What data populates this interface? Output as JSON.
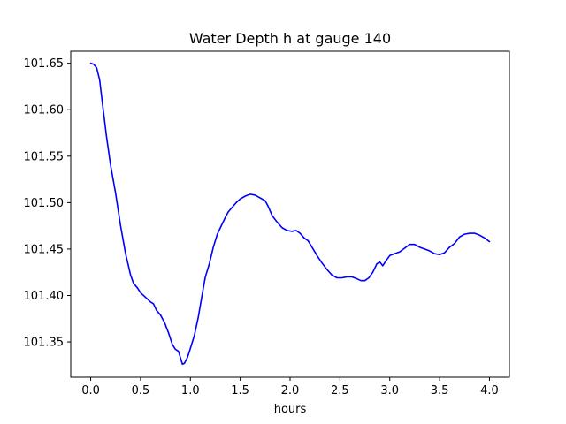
{
  "chart_data": {
    "type": "line",
    "title": "Water Depth h at gauge 140",
    "xlabel": "hours",
    "ylabel": "",
    "xlim": [
      -0.2,
      4.2
    ],
    "ylim": [
      101.312,
      101.663
    ],
    "x_ticks": [
      0.0,
      0.5,
      1.0,
      1.5,
      2.0,
      2.5,
      3.0,
      3.5,
      4.0
    ],
    "x_tick_labels": [
      "0.0",
      "0.5",
      "1.0",
      "1.5",
      "2.0",
      "2.5",
      "3.0",
      "3.5",
      "4.0"
    ],
    "y_ticks": [
      101.35,
      101.4,
      101.45,
      101.5,
      101.55,
      101.6,
      101.65
    ],
    "y_tick_labels": [
      "101.35",
      "101.40",
      "101.45",
      "101.50",
      "101.55",
      "101.60",
      "101.65"
    ],
    "grid": false,
    "series": [
      {
        "color": "#0000ff",
        "points": [
          [
            0.0,
            101.65
          ],
          [
            0.03,
            101.649
          ],
          [
            0.06,
            101.645
          ],
          [
            0.09,
            101.632
          ],
          [
            0.12,
            101.605
          ],
          [
            0.16,
            101.57
          ],
          [
            0.2,
            101.54
          ],
          [
            0.25,
            101.51
          ],
          [
            0.3,
            101.475
          ],
          [
            0.35,
            101.445
          ],
          [
            0.4,
            101.422
          ],
          [
            0.43,
            101.413
          ],
          [
            0.47,
            101.408
          ],
          [
            0.5,
            101.403
          ],
          [
            0.55,
            101.398
          ],
          [
            0.6,
            101.393
          ],
          [
            0.63,
            101.391
          ],
          [
            0.66,
            101.384
          ],
          [
            0.7,
            101.379
          ],
          [
            0.74,
            101.371
          ],
          [
            0.78,
            101.36
          ],
          [
            0.82,
            101.347
          ],
          [
            0.85,
            101.342
          ],
          [
            0.88,
            101.34
          ],
          [
            0.9,
            101.333
          ],
          [
            0.92,
            101.326
          ],
          [
            0.94,
            101.327
          ],
          [
            0.97,
            101.333
          ],
          [
            1.0,
            101.343
          ],
          [
            1.04,
            101.357
          ],
          [
            1.08,
            101.377
          ],
          [
            1.12,
            101.402
          ],
          [
            1.15,
            101.42
          ],
          [
            1.19,
            101.434
          ],
          [
            1.23,
            101.452
          ],
          [
            1.27,
            101.466
          ],
          [
            1.31,
            101.475
          ],
          [
            1.35,
            101.484
          ],
          [
            1.38,
            101.49
          ],
          [
            1.42,
            101.495
          ],
          [
            1.46,
            101.5
          ],
          [
            1.5,
            101.504
          ],
          [
            1.55,
            101.507
          ],
          [
            1.6,
            101.509
          ],
          [
            1.65,
            101.508
          ],
          [
            1.7,
            101.505
          ],
          [
            1.75,
            101.502
          ],
          [
            1.78,
            101.496
          ],
          [
            1.82,
            101.486
          ],
          [
            1.87,
            101.479
          ],
          [
            1.92,
            101.473
          ],
          [
            1.97,
            101.47
          ],
          [
            2.02,
            101.469
          ],
          [
            2.06,
            101.47
          ],
          [
            2.1,
            101.467
          ],
          [
            2.14,
            101.462
          ],
          [
            2.18,
            101.459
          ],
          [
            2.22,
            101.452
          ],
          [
            2.27,
            101.443
          ],
          [
            2.32,
            101.435
          ],
          [
            2.37,
            101.428
          ],
          [
            2.42,
            101.422
          ],
          [
            2.47,
            101.419
          ],
          [
            2.52,
            101.419
          ],
          [
            2.57,
            101.42
          ],
          [
            2.62,
            101.42
          ],
          [
            2.67,
            101.418
          ],
          [
            2.71,
            101.416
          ],
          [
            2.75,
            101.416
          ],
          [
            2.79,
            101.419
          ],
          [
            2.83,
            101.425
          ],
          [
            2.87,
            101.434
          ],
          [
            2.9,
            101.436
          ],
          [
            2.93,
            101.432
          ],
          [
            2.96,
            101.437
          ],
          [
            3.0,
            101.443
          ],
          [
            3.05,
            101.445
          ],
          [
            3.1,
            101.447
          ],
          [
            3.15,
            101.451
          ],
          [
            3.2,
            101.455
          ],
          [
            3.25,
            101.455
          ],
          [
            3.3,
            101.452
          ],
          [
            3.35,
            101.45
          ],
          [
            3.4,
            101.448
          ],
          [
            3.45,
            101.445
          ],
          [
            3.5,
            101.444
          ],
          [
            3.55,
            101.446
          ],
          [
            3.6,
            101.452
          ],
          [
            3.65,
            101.456
          ],
          [
            3.7,
            101.463
          ],
          [
            3.75,
            101.466
          ],
          [
            3.8,
            101.467
          ],
          [
            3.85,
            101.467
          ],
          [
            3.9,
            101.465
          ],
          [
            3.95,
            101.462
          ],
          [
            4.0,
            101.458
          ]
        ]
      }
    ]
  }
}
